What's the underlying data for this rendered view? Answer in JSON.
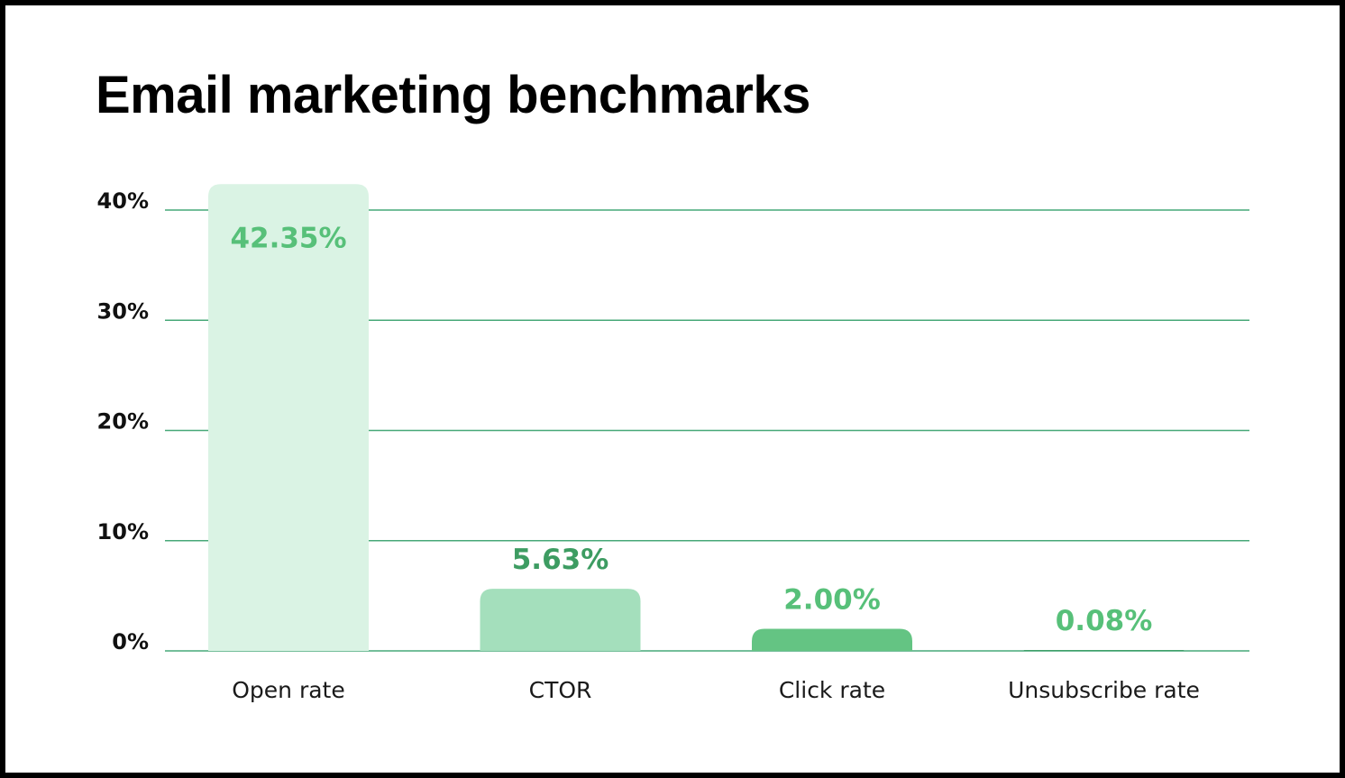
{
  "chart_data": {
    "type": "bar",
    "title": "Email marketing benchmarks",
    "categories": [
      "Open rate",
      "CTOR",
      "Click rate",
      "Unsubscribe rate"
    ],
    "values": [
      42.35,
      5.63,
      2.0,
      0.08
    ],
    "data_labels": [
      "42.35%",
      "5.63%",
      "2.00%",
      "0.08%"
    ],
    "yticks": [
      0,
      10,
      20,
      30,
      40
    ],
    "ytick_labels": [
      "0%",
      "10%",
      "20%",
      "30%",
      "40%"
    ],
    "ylim": [
      0,
      40
    ],
    "grid": true,
    "legend": "none",
    "xlabel": "",
    "ylabel": ""
  },
  "colors": {
    "grid": "#47a878",
    "bars": [
      "#daf3e4",
      "#a4dfbc",
      "#64c483",
      "#3f9e68"
    ],
    "labels": [
      "#57c079",
      "#3d9c62",
      "#57c079",
      "#57c079"
    ]
  }
}
